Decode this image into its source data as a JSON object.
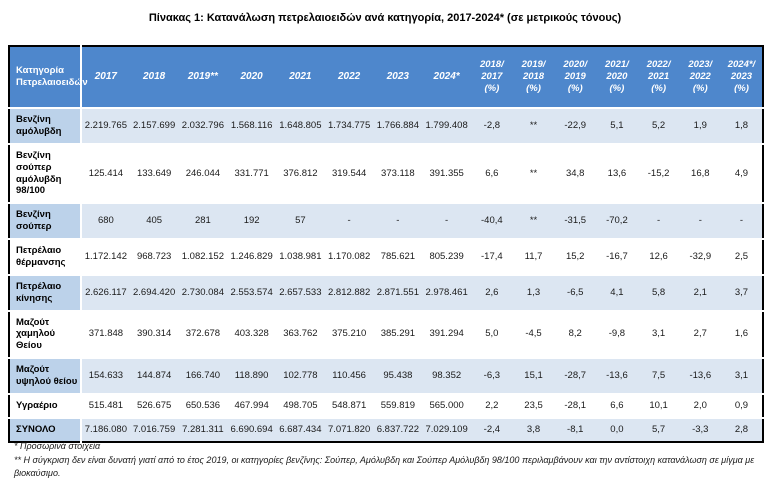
{
  "title": "Πίνακας 1: Κατανάλωση  πετρελαιοειδών ανά κατηγορία, 2017-2024* (σε μετρικούς τόνους)",
  "colors": {
    "header_bg": "#4e87cc",
    "header_text": "#ffffff",
    "row_shaded": "#dce6f2",
    "cat_shaded": "#bcd2ea",
    "border": "#000000"
  },
  "table": {
    "category_header": "Κατηγορία\nΠετρελαιοειδών",
    "year_headers": [
      "2017",
      "2018",
      "2019**",
      "2020",
      "2021",
      "2022",
      "2023",
      "2024*"
    ],
    "pct_headers": [
      "2018/\n2017\n(%)",
      "2019/\n2018\n(%)",
      "2020/\n2019\n(%)",
      "2021/\n2020\n(%)",
      "2022/\n2021\n(%)",
      "2023/\n2022\n(%)",
      "2024*/\n2023\n(%)"
    ],
    "rows": [
      {
        "category": "Βενζίνη αμόλυβδη",
        "shaded": true,
        "values": [
          "2.219.765",
          "2.157.699",
          "2.032.796",
          "1.568.116",
          "1.648.805",
          "1.734.775",
          "1.766.884",
          "1.799.408",
          "-2,8",
          "**",
          "-22,9",
          "5,1",
          "5,2",
          "1,9",
          "1,8"
        ]
      },
      {
        "category": "Βενζίνη σούπερ αμόλυβδη 98/100",
        "shaded": false,
        "values": [
          "125.414",
          "133.649",
          "246.044",
          "331.771",
          "376.812",
          "319.544",
          "373.118",
          "391.355",
          "6,6",
          "**",
          "34,8",
          "13,6",
          "-15,2",
          "16,8",
          "4,9"
        ]
      },
      {
        "category": "Βενζίνη σούπερ",
        "shaded": true,
        "values": [
          "680",
          "405",
          "281",
          "192",
          "57",
          "-",
          "-",
          "-",
          "-40,4",
          "**",
          "-31,5",
          "-70,2",
          "-",
          "-",
          "-"
        ]
      },
      {
        "category": "Πετρέλαιο θέρμανσης",
        "shaded": false,
        "values": [
          "1.172.142",
          "968.723",
          "1.082.152",
          "1.246.829",
          "1.038.981",
          "1.170.082",
          "785.621",
          "805.239",
          "-17,4",
          "11,7",
          "15,2",
          "-16,7",
          "12,6",
          "-32,9",
          "2,5"
        ]
      },
      {
        "category": "Πετρέλαιο κίνησης",
        "shaded": true,
        "values": [
          "2.626.117",
          "2.694.420",
          "2.730.084",
          "2.553.574",
          "2.657.533",
          "2.812.882",
          "2.871.551",
          "2.978.461",
          "2,6",
          "1,3",
          "-6,5",
          "4,1",
          "5,8",
          "2,1",
          "3,7"
        ]
      },
      {
        "category": "Μαζούτ χαμηλού Θείου",
        "shaded": false,
        "values": [
          "371.848",
          "390.314",
          "372.678",
          "403.328",
          "363.762",
          "375.210",
          "385.291",
          "391.294",
          "5,0",
          "-4,5",
          "8,2",
          "-9,8",
          "3,1",
          "2,7",
          "1,6"
        ]
      },
      {
        "category": "Μαζούτ υψηλού θείου",
        "shaded": true,
        "values": [
          "154.633",
          "144.874",
          "166.740",
          "118.890",
          "102.778",
          "110.456",
          "95.438",
          "98.352",
          "-6,3",
          "15,1",
          "-28,7",
          "-13,6",
          "7,5",
          "-13,6",
          "3,1"
        ]
      },
      {
        "category": "Υγραέριο",
        "shaded": false,
        "values": [
          "515.481",
          "526.675",
          "650.536",
          "467.994",
          "498.705",
          "548.871",
          "559.819",
          "565.000",
          "2,2",
          "23,5",
          "-28,1",
          "6,6",
          "10,1",
          "2,0",
          "0,9"
        ]
      },
      {
        "category": "ΣΥΝΟΛΟ",
        "shaded": true,
        "is_total": true,
        "values": [
          "7.186.080",
          "7.016.759",
          "7.281.311",
          "6.690.694",
          "6.687.434",
          "7.071.820",
          "6.837.722",
          "7.029.109",
          "-2,4",
          "3,8",
          "-8,1",
          "0,0",
          "5,7",
          "-3,3",
          "2,8"
        ]
      }
    ]
  },
  "footnotes": [
    "* Προσωρινά στοιχεία",
    "** Η σύγκριση δεν είναι δυνατή γιατί από το έτος 2019, οι κατηγορίες βενζίνης: Σούπερ, Αμόλυβδη και Σούπερ Αμόλυβδη 98/100 περιλαμβάνουν και την αντίστοιχη κατανάλωση σε μίγμα με βιοκαύσιμο."
  ]
}
